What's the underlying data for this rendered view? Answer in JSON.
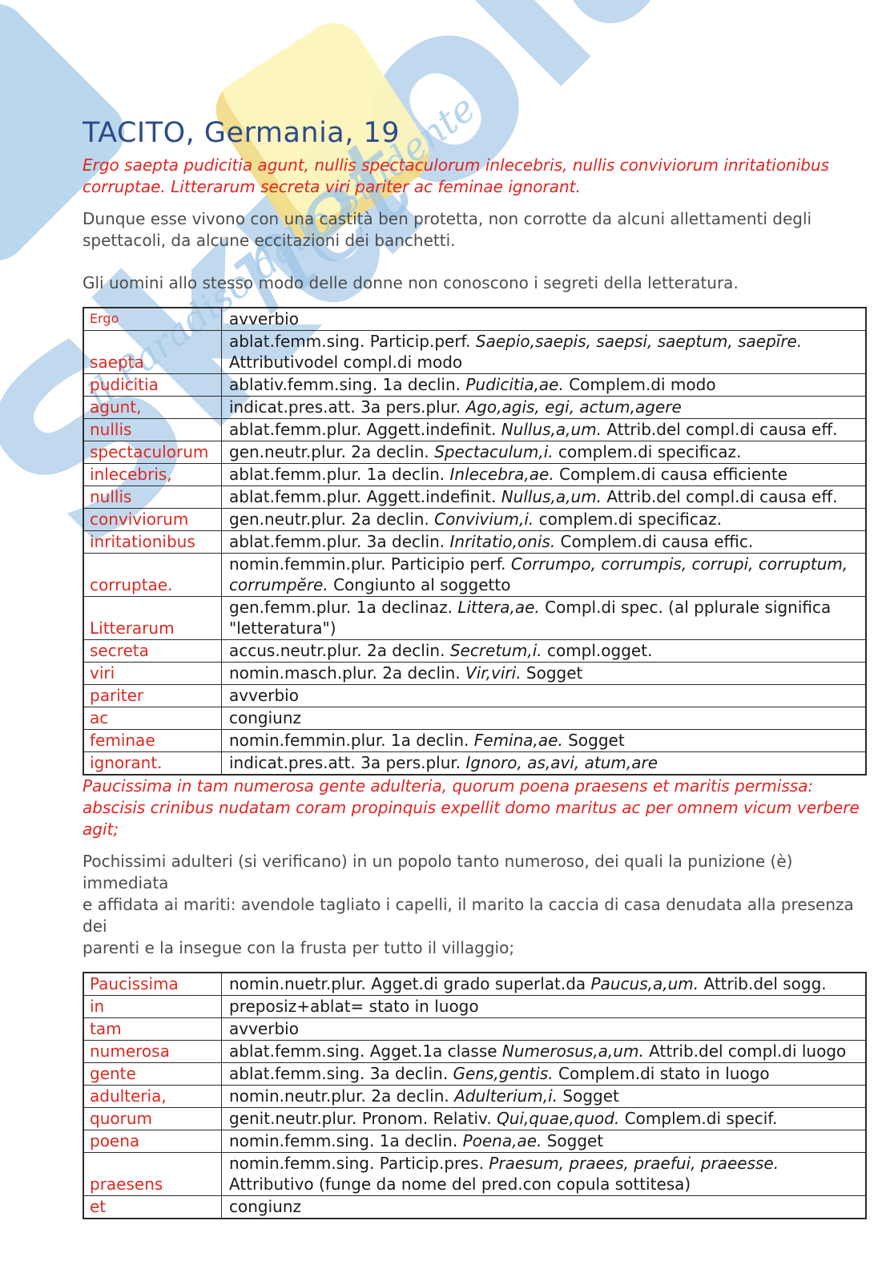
{
  "title": "TACITO, Germania, 19",
  "colors": {
    "title_blue": "#2c4c87",
    "latin_red": "#e42320",
    "word_red": "#d92a23",
    "body_gray": "#4d4d4d",
    "watermark_blue": "#9cc3e4",
    "watermark_yellow": "#fdf5bb"
  },
  "watermark": {
    "brand": "Skuola",
    "net": "net",
    "tagline": "il Paradiso dello Studente"
  },
  "passages": {
    "latin1": "Ergo saepta pudicitia agunt, nullis spectaculorum inlecebris, nullis conviviorum inritationibus\ncorruptae. Litterarum secreta viri pariter ac feminae ignorant.",
    "translation1a": "Dunque esse vivono con una castità ben protetta, non corrotte da alcuni allettamenti degli\nspettacoli, da alcune eccitazioni dei banchetti.",
    "translation1b": "Gli uomini allo stesso modo delle donne non conoscono i segreti della letteratura.",
    "latin2": "Paucissima in tam numerosa gente adulteria, quorum poena praesens et maritis permissa:\nabscisis crinibus nudatam coram propinquis expellit domo maritus ac per omnem vicum verbere\nagit;",
    "translation2": "Pochissimi adulteri (si verificano) in un popolo tanto numeroso, dei quali la punizione (è) immediata\ne affidata ai mariti: avendole tagliato i capelli, il marito la caccia di casa denudata alla presenza dei\nparenti e la insegue con la frusta per tutto il villaggio;"
  },
  "tables": [
    {
      "rows": [
        {
          "word": "Ergo",
          "small": true,
          "segments": [
            {
              "text": "avverbio",
              "italic": false
            }
          ]
        },
        {
          "word": "saepta",
          "segments": [
            {
              "text": "ablat.femm.sing. Particip.perf. ",
              "italic": false
            },
            {
              "text": "Saepio,saepis, saepsi, saeptum, saepīre.",
              "italic": true
            },
            {
              "text": "\nAttributivodel compl.di modo",
              "italic": false
            }
          ]
        },
        {
          "word": "pudicitia",
          "segments": [
            {
              "text": "ablativ.femm.sing. 1a declin. ",
              "italic": false
            },
            {
              "text": "Pudicitia,ae.",
              "italic": true
            },
            {
              "text": " Complem.di modo",
              "italic": false
            }
          ]
        },
        {
          "word": "agunt,",
          "segments": [
            {
              "text": "indicat.pres.att. 3a pers.plur. ",
              "italic": false
            },
            {
              "text": "Ago,agis, egi, actum,agere",
              "italic": true
            }
          ]
        },
        {
          "word": "nullis",
          "segments": [
            {
              "text": "ablat.femm.plur. Aggett.indefinit. ",
              "italic": false
            },
            {
              "text": "Nullus,a,um.",
              "italic": true
            },
            {
              "text": " Attrib.del compl.di causa eff.",
              "italic": false
            }
          ]
        },
        {
          "word": "spectaculorum",
          "segments": [
            {
              "text": "gen.neutr.plur. 2a declin. ",
              "italic": false
            },
            {
              "text": "Spectaculum,i.",
              "italic": true
            },
            {
              "text": " complem.di specificaz.",
              "italic": false
            }
          ]
        },
        {
          "word": "inlecebris,",
          "segments": [
            {
              "text": "ablat.femm.plur. 1a declin. ",
              "italic": false
            },
            {
              "text": "Inlecebra,ae.",
              "italic": true
            },
            {
              "text": " Complem.di causa efficiente",
              "italic": false
            }
          ]
        },
        {
          "word": "nullis",
          "segments": [
            {
              "text": "ablat.femm.plur. Aggett.indefinit. ",
              "italic": false
            },
            {
              "text": "Nullus,a,um.",
              "italic": true
            },
            {
              "text": " Attrib.del compl.di causa eff.",
              "italic": false
            }
          ]
        },
        {
          "word": "conviviorum",
          "segments": [
            {
              "text": "gen.neutr.plur. 2a declin. ",
              "italic": false
            },
            {
              "text": "Convivium,i.",
              "italic": true
            },
            {
              "text": " complem.di specificaz.",
              "italic": false
            }
          ]
        },
        {
          "word": "inritationibus",
          "segments": [
            {
              "text": "ablat.femm.plur. 3a declin. ",
              "italic": false
            },
            {
              "text": "Inritatio,onis.",
              "italic": true
            },
            {
              "text": " Complem.di causa effic.",
              "italic": false
            }
          ]
        },
        {
          "word": "corruptae.",
          "segments": [
            {
              "text": "nomin.femmin.plur. Participio perf. ",
              "italic": false
            },
            {
              "text": "Corrumpo, corrumpis, corrupi, corruptum,\ncorrumpĕre.",
              "italic": true
            },
            {
              "text": " Congiunto al soggetto",
              "italic": false
            }
          ]
        },
        {
          "word": "Litterarum",
          "segments": [
            {
              "text": "gen.femm.plur. 1a declinaz. ",
              "italic": false
            },
            {
              "text": "Littera,ae.",
              "italic": true
            },
            {
              "text": " Compl.di spec. (al pplurale significa\n\"letteratura\")",
              "italic": false
            }
          ]
        },
        {
          "word": "secreta",
          "segments": [
            {
              "text": "accus.neutr.plur. 2a declin. ",
              "italic": false
            },
            {
              "text": "Secretum,i.",
              "italic": true
            },
            {
              "text": " compl.ogget.",
              "italic": false
            }
          ]
        },
        {
          "word": "viri",
          "segments": [
            {
              "text": "nomin.masch.plur. 2a declin. ",
              "italic": false
            },
            {
              "text": "Vir,viri.",
              "italic": true
            },
            {
              "text": " Sogget",
              "italic": false
            }
          ]
        },
        {
          "word": "pariter",
          "segments": [
            {
              "text": "avverbio",
              "italic": false
            }
          ]
        },
        {
          "word": "ac",
          "segments": [
            {
              "text": "congiunz",
              "italic": false
            }
          ]
        },
        {
          "word": "feminae",
          "segments": [
            {
              "text": "nomin.femmin.plur. 1a declin. ",
              "italic": false
            },
            {
              "text": "Femina,ae.",
              "italic": true
            },
            {
              "text": " Sogget",
              "italic": false
            }
          ]
        },
        {
          "word": "ignorant.",
          "segments": [
            {
              "text": "indicat.pres.att. 3a pers.plur. ",
              "italic": false
            },
            {
              "text": "Ignoro, as,avi, atum,are",
              "italic": true
            }
          ]
        }
      ]
    },
    {
      "rows": [
        {
          "word": "Paucissima",
          "segments": [
            {
              "text": "nomin.nuetr.plur. Agget.di grado superlat.da ",
              "italic": false
            },
            {
              "text": "Paucus,a,um.",
              "italic": true
            },
            {
              "text": " Attrib.del sogg.",
              "italic": false
            }
          ]
        },
        {
          "word": "in",
          "segments": [
            {
              "text": "preposiz+ablat= stato in luogo",
              "italic": false
            }
          ]
        },
        {
          "word": "tam",
          "segments": [
            {
              "text": "avverbio",
              "italic": false
            }
          ]
        },
        {
          "word": "numerosa",
          "segments": [
            {
              "text": "ablat.femm.sing. Agget.1a classe ",
              "italic": false
            },
            {
              "text": "Numerosus,a,um.",
              "italic": true
            },
            {
              "text": " Attrib.del compl.di luogo",
              "italic": false
            }
          ]
        },
        {
          "word": "gente",
          "segments": [
            {
              "text": "ablat.femm.sing. 3a declin. ",
              "italic": false
            },
            {
              "text": "Gens,gentis.",
              "italic": true
            },
            {
              "text": " Complem.di stato in luogo",
              "italic": false
            }
          ]
        },
        {
          "word": "adulteria,",
          "segments": [
            {
              "text": "nomin.neutr.plur. 2a declin. ",
              "italic": false
            },
            {
              "text": "Adulterium,i.",
              "italic": true
            },
            {
              "text": " Sogget",
              "italic": false
            }
          ]
        },
        {
          "word": "quorum",
          "segments": [
            {
              "text": "genit.neutr.plur. Pronom. Relativ. ",
              "italic": false
            },
            {
              "text": "Qui,quae,quod.",
              "italic": true
            },
            {
              "text": " Complem.di specif.",
              "italic": false
            }
          ]
        },
        {
          "word": "poena",
          "segments": [
            {
              "text": "nomin.femm.sing. 1a declin. ",
              "italic": false
            },
            {
              "text": "Poena,ae.",
              "italic": true
            },
            {
              "text": " Sogget",
              "italic": false
            }
          ]
        },
        {
          "word": "praesens",
          "segments": [
            {
              "text": "nomin.femm.sing. Particip.pres. ",
              "italic": false
            },
            {
              "text": "Praesum,  praees, praefui, praeesse.",
              "italic": true
            },
            {
              "text": "\nAttributivo (funge da nome del pred.con copula sottitesa)",
              "italic": false
            }
          ]
        },
        {
          "word": "et",
          "segments": [
            {
              "text": "congiunz",
              "italic": false
            }
          ]
        }
      ]
    }
  ]
}
